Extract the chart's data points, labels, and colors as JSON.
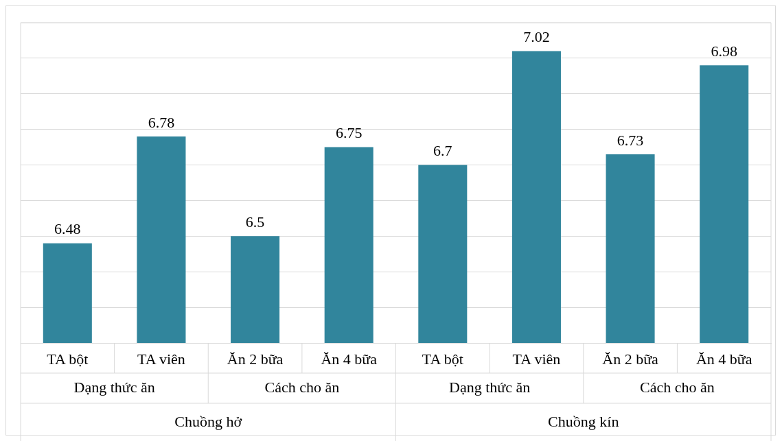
{
  "chart_data": {
    "type": "bar",
    "categories": [
      "TA bột",
      "TA viên",
      "Ăn 2 bữa",
      "Ăn 4 bữa",
      "TA bột",
      "TA viên",
      "Ăn 2 bữa",
      "Ăn 4 bữa"
    ],
    "values": [
      6.48,
      6.78,
      6.5,
      6.75,
      6.7,
      7.02,
      6.73,
      6.98
    ],
    "color": "#31859c",
    "ylim": [
      6.2,
      7.1
    ],
    "yticks": [
      {
        "value": 6.2,
        "label": null
      },
      {
        "value": 6.3,
        "label": null
      },
      {
        "value": 6.4,
        "label": null
      },
      {
        "value": 6.5,
        "label": null
      },
      {
        "value": 6.6,
        "label": null
      },
      {
        "value": 6.7,
        "label": null
      },
      {
        "value": 6.8,
        "label": null
      },
      {
        "value": 6.9,
        "label": null
      },
      {
        "value": 7.0,
        "label": null
      },
      {
        "value": 7.1,
        "label": null
      }
    ],
    "annotations": [
      "Dạng thức ăn",
      "Cách cho ăn",
      "Dạng thức ăn",
      "Cách cho ăn",
      "Chuồng hở",
      "Chuồng kín"
    ],
    "data_labels": true,
    "grid": "y",
    "legend": false,
    "tick_labels": "x"
  }
}
